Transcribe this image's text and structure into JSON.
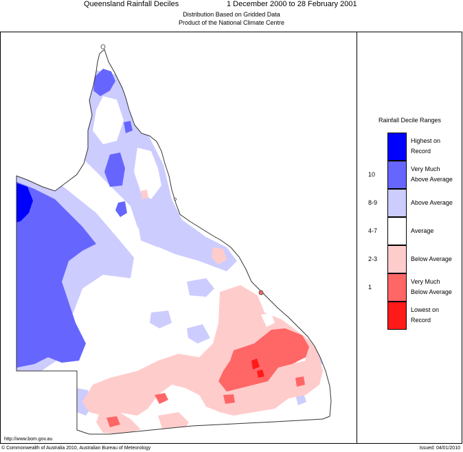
{
  "header": {
    "title": "Queensland Rainfall Deciles",
    "period": "1 December 2000 to 28 February 2001",
    "subtitle_1": "Distribution Based on Gridded Data",
    "subtitle_2": "Product of the National Climate Centre"
  },
  "legend": {
    "title": "Rainfall Decile Ranges",
    "items": [
      {
        "range": "",
        "label": [
          "Highest on",
          "Record"
        ],
        "color": "#0000ff"
      },
      {
        "range": "10",
        "label": [
          "Very Much",
          "Above Average"
        ],
        "color": "#6666ff"
      },
      {
        "range": "8-9",
        "label": [
          "Above Average"
        ],
        "color": "#ccccff"
      },
      {
        "range": "4-7",
        "label": [
          "Average"
        ],
        "color": "#ffffff"
      },
      {
        "range": "2-3",
        "label": [
          "Below Average"
        ],
        "color": "#ffcccc"
      },
      {
        "range": "1",
        "label": [
          "Very Much",
          "Below Average"
        ],
        "color": "#ff6666"
      },
      {
        "range": "",
        "label": [
          "Lowest on",
          "Record"
        ],
        "color": "#ff1a1a"
      }
    ]
  },
  "footer": {
    "url": "http://www.bom.gov.au",
    "copyright": "© Commonwealth of Australia 2010, Australian Bureau of Meteorology",
    "issued": "Issued: 04/01/2010"
  },
  "colors": {
    "highest": "#0000ff",
    "very_much_above": "#6666ff",
    "above": "#ccccff",
    "average": "#ffffff",
    "below": "#ffcccc",
    "very_much_below": "#ff6666",
    "lowest": "#ff1a1a",
    "outline": "#333333"
  }
}
